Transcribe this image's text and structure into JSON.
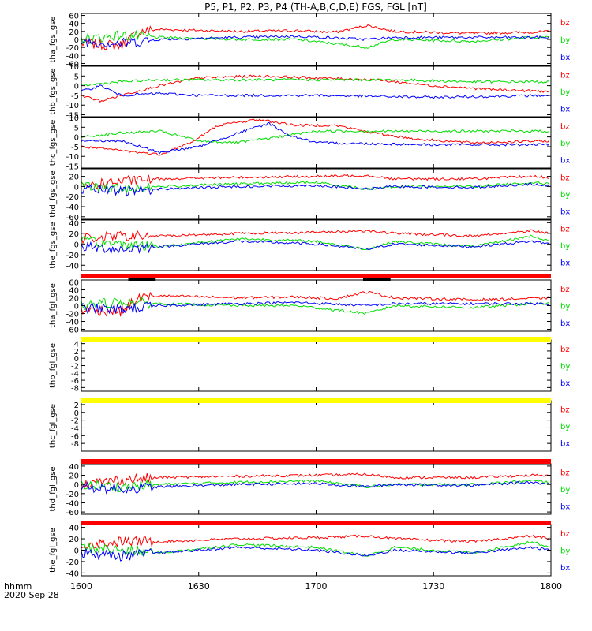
{
  "title": "P5, P1, P2, P3, P4 (TH-A,B,C,D,E) FGS, FGL [nT]",
  "colors": {
    "bz": "#ff0000",
    "by": "#00dd00",
    "bx": "#0000ff",
    "bar_red": "#ff0000",
    "bar_yellow": "#ffff00",
    "axis": "#000000"
  },
  "x_axis": {
    "label": "hhmm",
    "date": "2020 Sep 28",
    "range": [
      "16:00",
      "18:00"
    ],
    "ticks": [
      {
        "t": "16:00",
        "label": "1600"
      },
      {
        "t": "16:30",
        "label": "1630"
      },
      {
        "t": "17:00",
        "label": "1700"
      },
      {
        "t": "17:30",
        "label": "1730"
      },
      {
        "t": "18:00",
        "label": "1800"
      }
    ]
  },
  "chart_data": [
    {
      "type": "line",
      "ylabel": "tha_fgs_gse",
      "ylim": [
        -65,
        65
      ],
      "yticks": [
        -60,
        -40,
        -20,
        0,
        20,
        40,
        60
      ],
      "legend": [
        "bz",
        "by",
        "bx"
      ],
      "series": [
        {
          "name": "bz",
          "t": [
            "16:00",
            "16:10",
            "16:15",
            "16:20",
            "16:40",
            "16:55",
            "17:05",
            "17:13",
            "17:20",
            "17:40",
            "17:55",
            "18:00"
          ],
          "values": [
            -10,
            -15,
            20,
            25,
            20,
            22,
            18,
            35,
            20,
            15,
            18,
            20
          ]
        },
        {
          "name": "by",
          "t": [
            "16:00",
            "16:10",
            "16:20",
            "16:40",
            "16:55",
            "17:13",
            "17:20",
            "17:40",
            "17:55",
            "18:00"
          ],
          "values": [
            0,
            10,
            5,
            0,
            0,
            -20,
            0,
            -5,
            5,
            5
          ]
        },
        {
          "name": "bx",
          "t": [
            "16:00",
            "16:10",
            "16:20",
            "16:40",
            "16:55",
            "17:13",
            "17:20",
            "17:40",
            "17:55",
            "18:00"
          ],
          "values": [
            -5,
            -10,
            0,
            5,
            8,
            0,
            5,
            5,
            5,
            5
          ]
        }
      ]
    },
    {
      "type": "line",
      "ylabel": "thb_fgs_gse",
      "ylim": [
        -16,
        10
      ],
      "yticks": [
        -15,
        -10,
        -5,
        0,
        5,
        10
      ],
      "legend": [
        "bz",
        "by",
        "bx"
      ],
      "series": [
        {
          "name": "bz",
          "t": [
            "16:00",
            "16:05",
            "16:10",
            "16:20",
            "16:30",
            "16:45",
            "17:00",
            "17:15",
            "17:30",
            "17:45",
            "18:00"
          ],
          "values": [
            -5,
            -8,
            -5,
            0,
            4,
            5,
            4,
            3,
            0,
            -2,
            -3
          ]
        },
        {
          "name": "by",
          "t": [
            "16:00",
            "16:10",
            "16:20",
            "16:40",
            "17:00",
            "17:20",
            "17:40",
            "18:00"
          ],
          "values": [
            0,
            2,
            3,
            3,
            3,
            3,
            2,
            2
          ]
        },
        {
          "name": "bx",
          "t": [
            "16:00",
            "16:05",
            "16:10",
            "16:20",
            "16:30",
            "17:00",
            "17:30",
            "18:00"
          ],
          "values": [
            -3,
            0,
            -5,
            -4,
            -5,
            -5,
            -6,
            -5
          ]
        }
      ]
    },
    {
      "type": "line",
      "ylabel": "thc_fgs_gse",
      "ylim": [
        -16,
        10
      ],
      "yticks": [
        -15,
        -10,
        -5,
        0,
        5,
        10
      ],
      "legend": [
        "bz",
        "by",
        "bx"
      ],
      "series": [
        {
          "name": "bz",
          "t": [
            "16:00",
            "16:10",
            "16:20",
            "16:28",
            "16:35",
            "16:45",
            "16:55",
            "17:05",
            "17:15",
            "17:25",
            "17:40",
            "18:00"
          ],
          "values": [
            -5,
            -7,
            -9,
            -3,
            6,
            9,
            6,
            6,
            2,
            -1,
            -3,
            -2
          ]
        },
        {
          "name": "by",
          "t": [
            "16:00",
            "16:10",
            "16:20",
            "16:30",
            "16:40",
            "16:50",
            "17:00",
            "17:20",
            "17:40",
            "18:00"
          ],
          "values": [
            0,
            2,
            3,
            -2,
            -3,
            0,
            3,
            3,
            3,
            3
          ]
        },
        {
          "name": "bx",
          "t": [
            "16:00",
            "16:10",
            "16:20",
            "16:30",
            "16:40",
            "16:48",
            "16:53",
            "17:00",
            "17:30",
            "18:00"
          ],
          "values": [
            -2,
            -2,
            -8,
            -5,
            2,
            7,
            1,
            -3,
            -4,
            -4
          ]
        }
      ]
    },
    {
      "type": "line",
      "ylabel": "thd_fgs_gse",
      "ylim": [
        -65,
        35
      ],
      "yticks": [
        -60,
        -40,
        -20,
        0,
        20
      ],
      "legend": [
        "bz",
        "by",
        "bx"
      ],
      "series": [
        {
          "name": "bz",
          "t": [
            "16:00",
            "16:10",
            "16:20",
            "16:40",
            "17:00",
            "17:13",
            "17:20",
            "17:40",
            "17:55",
            "18:00"
          ],
          "values": [
            0,
            10,
            15,
            18,
            20,
            22,
            15,
            15,
            20,
            18
          ]
        },
        {
          "name": "by",
          "t": [
            "16:00",
            "16:10",
            "16:20",
            "16:40",
            "17:00",
            "17:13",
            "17:20",
            "17:40",
            "17:55",
            "18:00"
          ],
          "values": [
            0,
            -5,
            0,
            5,
            8,
            -5,
            0,
            0,
            8,
            5
          ]
        },
        {
          "name": "bx",
          "t": [
            "16:00",
            "16:10",
            "16:20",
            "16:40",
            "17:00",
            "17:13",
            "17:20",
            "17:40",
            "17:55",
            "18:00"
          ],
          "values": [
            -5,
            -10,
            -5,
            0,
            2,
            -5,
            0,
            -2,
            5,
            0
          ]
        }
      ]
    },
    {
      "type": "line",
      "ylabel": "the_fgs_gse",
      "ylim": [
        -50,
        45
      ],
      "yticks": [
        -40,
        -20,
        0,
        20,
        40
      ],
      "legend": [
        "bz",
        "by",
        "bx"
      ],
      "series": [
        {
          "name": "bz",
          "t": [
            "16:00",
            "16:10",
            "16:20",
            "16:40",
            "17:00",
            "17:13",
            "17:20",
            "17:40",
            "17:55",
            "18:00"
          ],
          "values": [
            10,
            15,
            15,
            20,
            22,
            25,
            20,
            15,
            25,
            20
          ]
        },
        {
          "name": "by",
          "t": [
            "16:00",
            "16:10",
            "16:20",
            "16:40",
            "17:00",
            "17:13",
            "17:20",
            "17:40",
            "17:55",
            "18:00"
          ],
          "values": [
            5,
            0,
            -5,
            10,
            5,
            -10,
            5,
            -5,
            15,
            5
          ]
        },
        {
          "name": "bx",
          "t": [
            "16:00",
            "16:10",
            "16:20",
            "16:40",
            "17:00",
            "17:13",
            "17:20",
            "17:40",
            "17:55",
            "18:00"
          ],
          "values": [
            -5,
            -10,
            -5,
            5,
            0,
            -10,
            0,
            -5,
            5,
            0
          ]
        }
      ]
    },
    {
      "type": "line",
      "ylabel": "tha_fgl_gse",
      "ylim": [
        -65,
        65
      ],
      "yticks": [
        -60,
        -40,
        -20,
        0,
        20,
        40,
        60
      ],
      "legend": [
        "bz",
        "by",
        "bx"
      ],
      "series": [
        {
          "name": "bz",
          "t": [
            "16:00",
            "16:10",
            "16:15",
            "16:20",
            "16:40",
            "16:55",
            "17:05",
            "17:13",
            "17:20",
            "17:40",
            "17:55",
            "18:00"
          ],
          "values": [
            -10,
            -15,
            20,
            25,
            20,
            22,
            18,
            35,
            20,
            15,
            18,
            20
          ]
        },
        {
          "name": "by",
          "t": [
            "16:00",
            "16:10",
            "16:20",
            "16:40",
            "16:55",
            "17:13",
            "17:20",
            "17:40",
            "17:55",
            "18:00"
          ],
          "values": [
            0,
            10,
            5,
            0,
            0,
            -20,
            0,
            -5,
            5,
            5
          ]
        },
        {
          "name": "bx",
          "t": [
            "16:00",
            "16:10",
            "16:20",
            "16:40",
            "16:55",
            "17:13",
            "17:20",
            "17:40",
            "17:55",
            "18:00"
          ],
          "values": [
            -5,
            -10,
            0,
            5,
            8,
            0,
            5,
            5,
            5,
            5
          ]
        }
      ]
    },
    {
      "type": "line",
      "ylabel": "thb_fgl_gse",
      "ylim": [
        -9,
        5
      ],
      "yticks": [
        -8,
        -6,
        -4,
        -2,
        0,
        2,
        4
      ],
      "legend": [
        "bz",
        "by",
        "bx"
      ],
      "series": []
    },
    {
      "type": "line",
      "ylabel": "thc_fgl_gse",
      "ylim": [
        -10,
        3
      ],
      "yticks": [
        -8,
        -6,
        -4,
        -2,
        0,
        2
      ],
      "legend": [
        "bz",
        "by",
        "bx"
      ],
      "series": []
    },
    {
      "type": "line",
      "ylabel": "thd_fgl_gse",
      "ylim": [
        -65,
        45
      ],
      "yticks": [
        -60,
        -40,
        -20,
        0,
        20,
        40
      ],
      "legend": [
        "bz",
        "by",
        "bx"
      ],
      "series": [
        {
          "name": "bz",
          "t": [
            "16:00",
            "16:10",
            "16:20",
            "16:40",
            "17:00",
            "17:13",
            "17:20",
            "17:40",
            "17:55",
            "18:00"
          ],
          "values": [
            0,
            10,
            15,
            18,
            20,
            22,
            15,
            15,
            20,
            18
          ]
        },
        {
          "name": "by",
          "t": [
            "16:00",
            "16:10",
            "16:20",
            "16:40",
            "17:00",
            "17:13",
            "17:20",
            "17:40",
            "17:55",
            "18:00"
          ],
          "values": [
            0,
            -5,
            0,
            5,
            8,
            -5,
            0,
            0,
            8,
            5
          ]
        },
        {
          "name": "bx",
          "t": [
            "16:00",
            "16:10",
            "16:20",
            "16:40",
            "17:00",
            "17:13",
            "17:20",
            "17:40",
            "17:55",
            "18:00"
          ],
          "values": [
            -5,
            -10,
            -5,
            0,
            2,
            -5,
            0,
            -2,
            5,
            0
          ]
        }
      ]
    },
    {
      "type": "line",
      "ylabel": "the_fgl_gse",
      "ylim": [
        -45,
        45
      ],
      "yticks": [
        -40,
        -20,
        0,
        20,
        40
      ],
      "legend": [
        "bz",
        "by",
        "bx"
      ],
      "series": [
        {
          "name": "bz",
          "t": [
            "16:00",
            "16:10",
            "16:20",
            "16:40",
            "17:00",
            "17:13",
            "17:20",
            "17:40",
            "17:55",
            "18:00"
          ],
          "values": [
            10,
            15,
            15,
            20,
            22,
            25,
            20,
            15,
            25,
            20
          ]
        },
        {
          "name": "by",
          "t": [
            "16:00",
            "16:10",
            "16:20",
            "16:40",
            "17:00",
            "17:13",
            "17:20",
            "17:40",
            "17:55",
            "18:00"
          ],
          "values": [
            5,
            0,
            -5,
            10,
            5,
            -10,
            5,
            -5,
            15,
            5
          ]
        },
        {
          "name": "bx",
          "t": [
            "16:00",
            "16:10",
            "16:20",
            "16:40",
            "17:00",
            "17:13",
            "17:20",
            "17:40",
            "17:55",
            "18:00"
          ],
          "values": [
            -5,
            -10,
            -5,
            5,
            0,
            -10,
            0,
            -5,
            5,
            0
          ]
        }
      ]
    }
  ],
  "status_bars": [
    {
      "after_panel": 4,
      "color": "red",
      "marks": [
        [
          "16:12",
          "16:19"
        ],
        [
          "17:12",
          "17:19"
        ]
      ]
    },
    {
      "after_panel": 5,
      "color": "yellow",
      "marks": []
    },
    {
      "after_panel": 6,
      "color": "yellow",
      "marks": []
    },
    {
      "after_panel": 7,
      "color": "red",
      "marks": []
    },
    {
      "after_panel": 8,
      "color": "red",
      "marks": []
    }
  ]
}
